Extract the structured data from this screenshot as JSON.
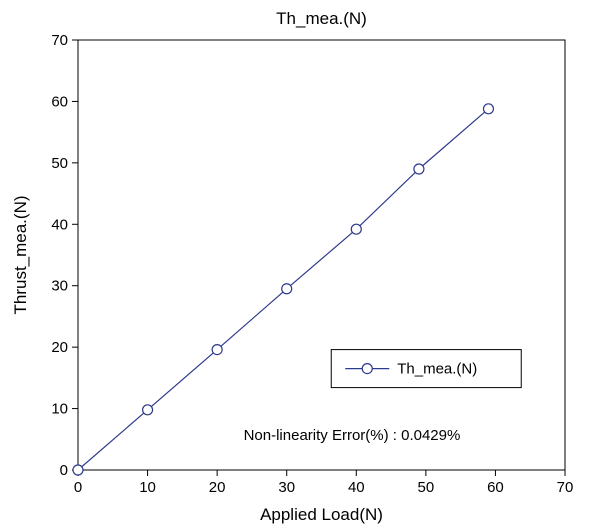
{
  "chart": {
    "type": "line",
    "title": "Th_mea.(N)",
    "title_fontsize": 17,
    "title_color": "#000000",
    "xlabel": "Applied Load(N)",
    "ylabel": "Thrust_mea.(N)",
    "label_fontsize": 17,
    "label_color": "#000000",
    "xlim": [
      0,
      70
    ],
    "ylim": [
      0,
      70
    ],
    "xtick_step": 10,
    "ytick_step": 10,
    "xticks": [
      0,
      10,
      20,
      30,
      40,
      50,
      60,
      70
    ],
    "yticks": [
      0,
      10,
      20,
      30,
      40,
      50,
      60,
      70
    ],
    "tick_fontsize": 15,
    "tick_color": "#000000",
    "grid_on": false,
    "background_color": "#ffffff",
    "plot_border_color": "#000000",
    "plot_border_width": 1,
    "series": {
      "name": "Th_mea.(N)",
      "x": [
        0,
        10,
        20,
        30,
        40,
        49,
        59
      ],
      "y": [
        0,
        9.8,
        19.6,
        29.5,
        39.2,
        49,
        58.8
      ],
      "line_color": "#2e3a8c",
      "line_width": 1.2,
      "marker": "circle",
      "marker_size": 5,
      "marker_face_color": "#ffffff",
      "marker_edge_color": "#2e3a8c",
      "marker_edge_width": 1.2
    },
    "legend": {
      "position": "lower-right",
      "border_color": "#000000",
      "fill_color": "#ffffff",
      "fontsize": 15
    },
    "annotation": {
      "text": "Non-linearity Error(%) : 0.0429%",
      "fontsize": 15,
      "color": "#000000"
    },
    "tick_mark_length": 6,
    "tick_mark_width": 1
  }
}
